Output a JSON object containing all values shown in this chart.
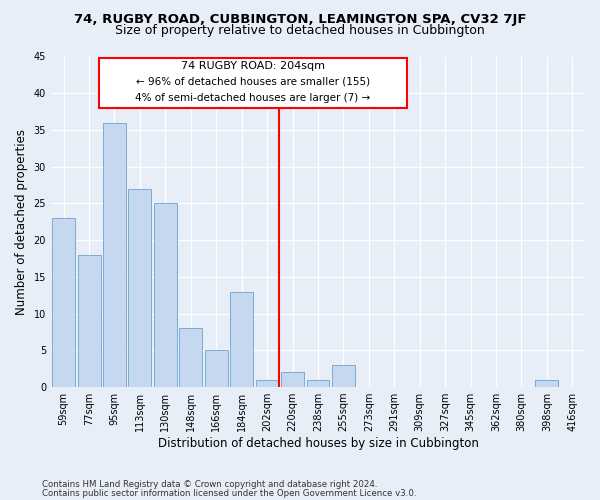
{
  "title": "74, RUGBY ROAD, CUBBINGTON, LEAMINGTON SPA, CV32 7JF",
  "subtitle": "Size of property relative to detached houses in Cubbington",
  "xlabel": "Distribution of detached houses by size in Cubbington",
  "ylabel": "Number of detached properties",
  "categories": [
    "59sqm",
    "77sqm",
    "95sqm",
    "113sqm",
    "130sqm",
    "148sqm",
    "166sqm",
    "184sqm",
    "202sqm",
    "220sqm",
    "238sqm",
    "255sqm",
    "273sqm",
    "291sqm",
    "309sqm",
    "327sqm",
    "345sqm",
    "362sqm",
    "380sqm",
    "398sqm",
    "416sqm"
  ],
  "values": [
    23,
    18,
    36,
    27,
    25,
    8,
    5,
    13,
    1,
    2,
    1,
    3,
    0,
    0,
    0,
    0,
    0,
    0,
    0,
    1,
    0
  ],
  "bar_color": "#c5d8f0",
  "bar_edgecolor": "#7bacd4",
  "property_bin_index": 8,
  "annotation_title": "74 RUGBY ROAD: 204sqm",
  "annotation_line1": "← 96% of detached houses are smaller (155)",
  "annotation_line2": "4% of semi-detached houses are larger (7) →",
  "footer1": "Contains HM Land Registry data © Crown copyright and database right 2024.",
  "footer2": "Contains public sector information licensed under the Open Government Licence v3.0.",
  "ylim": [
    0,
    45
  ],
  "yticks": [
    0,
    5,
    10,
    15,
    20,
    25,
    30,
    35,
    40,
    45
  ],
  "bg_color": "#e8eef8",
  "plot_bg_color": "#e8eef8",
  "grid_color": "#ffffff",
  "title_fontsize": 9.5,
  "subtitle_fontsize": 9,
  "axis_label_fontsize": 8.5,
  "tick_fontsize": 7
}
